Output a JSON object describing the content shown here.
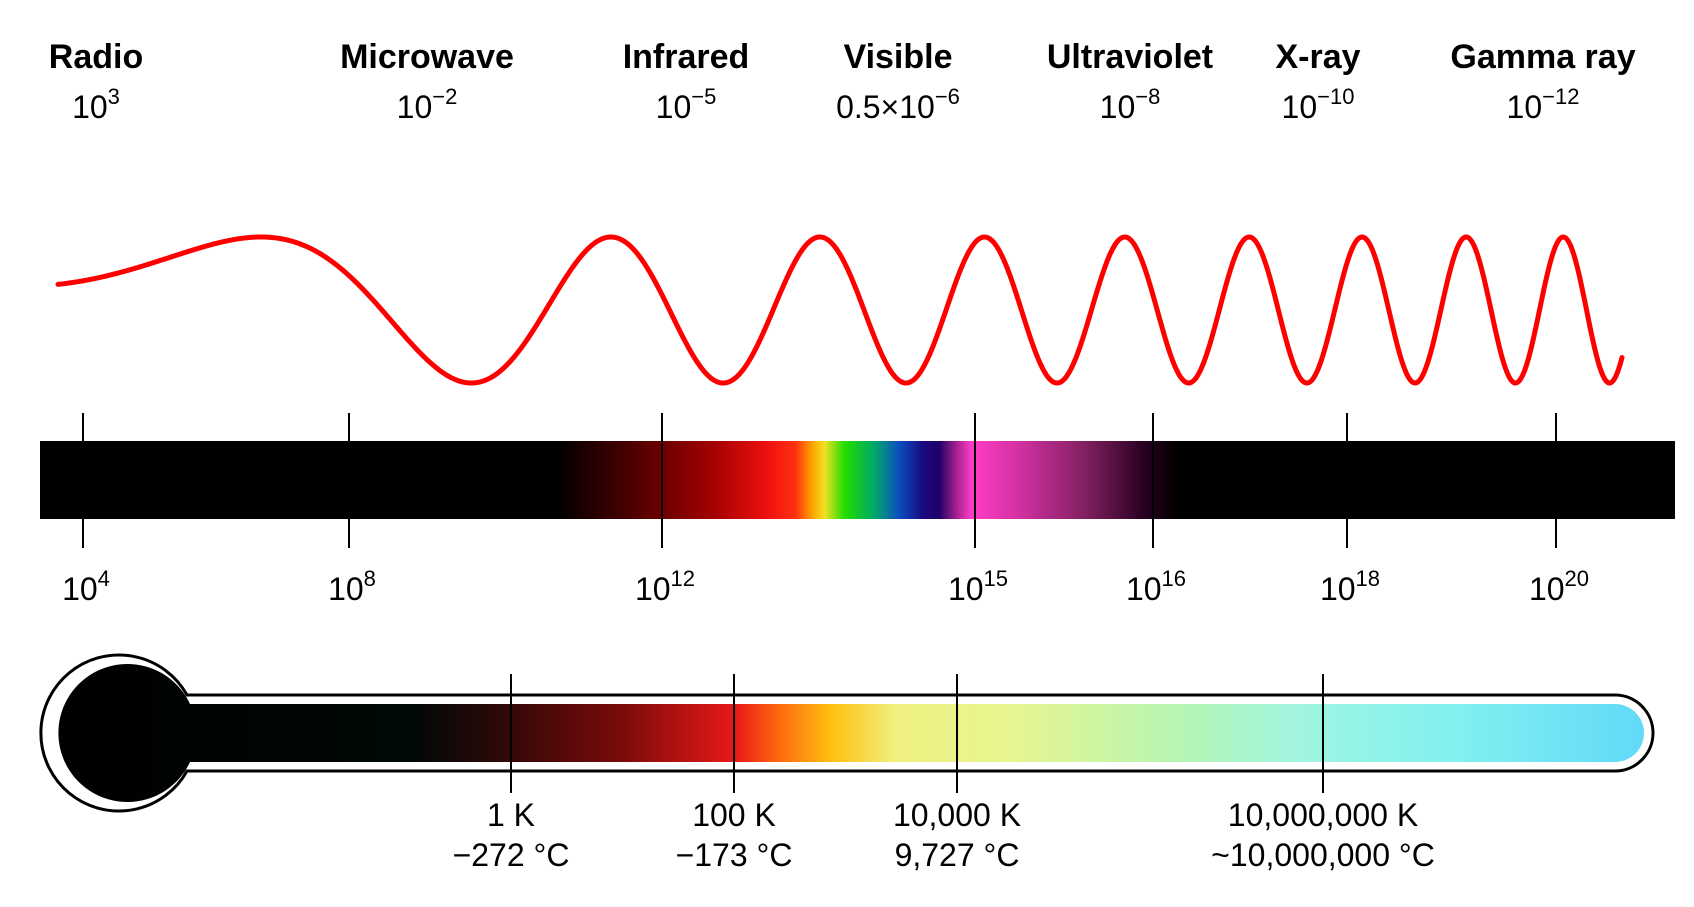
{
  "bands": [
    {
      "name": "Radio",
      "wavelength": {
        "base": "10",
        "exp": "3"
      }
    },
    {
      "name": "Microwave",
      "wavelength": {
        "base": "10",
        "exp": "−2"
      }
    },
    {
      "name": "Infrared",
      "wavelength": {
        "base": "10",
        "exp": "−5"
      }
    },
    {
      "name": "Visible",
      "wavelength": {
        "base": "0.5×10",
        "exp": "−6"
      }
    },
    {
      "name": "Ultraviolet",
      "wavelength": {
        "base": "10",
        "exp": "−8"
      }
    },
    {
      "name": "X-ray",
      "wavelength": {
        "base": "10",
        "exp": "−10"
      }
    },
    {
      "name": "Gamma ray",
      "wavelength": {
        "base": "10",
        "exp": "−12"
      }
    }
  ],
  "frequency_ticks": [
    {
      "base": "10",
      "exp": "4"
    },
    {
      "base": "10",
      "exp": "8"
    },
    {
      "base": "10",
      "exp": "12"
    },
    {
      "base": "10",
      "exp": "15"
    },
    {
      "base": "10",
      "exp": "16"
    },
    {
      "base": "10",
      "exp": "18"
    },
    {
      "base": "10",
      "exp": "20"
    }
  ],
  "temperature_ticks": [
    {
      "kelvin": "1 K",
      "celsius": "−272 °C"
    },
    {
      "kelvin": "100 K",
      "celsius": "−173 °C"
    },
    {
      "kelvin": "10,000 K",
      "celsius": "9,727 °C"
    },
    {
      "kelvin": "10,000,000 K",
      "celsius": "~10,000,000 °C"
    }
  ],
  "colors": {
    "wave": "#ff0000",
    "bar": "#000000",
    "red": "#ff1a1a",
    "orange": "#ff8c00",
    "yellow": "#f5e61e",
    "green": "#22dd00",
    "blue": "#0a3fb0",
    "violet": "#2a0a8a",
    "magenta": "#ff3cc8",
    "light_yellow": "#eef58a",
    "light_green": "#b8f5b0",
    "cyan": "#66e8f0"
  }
}
